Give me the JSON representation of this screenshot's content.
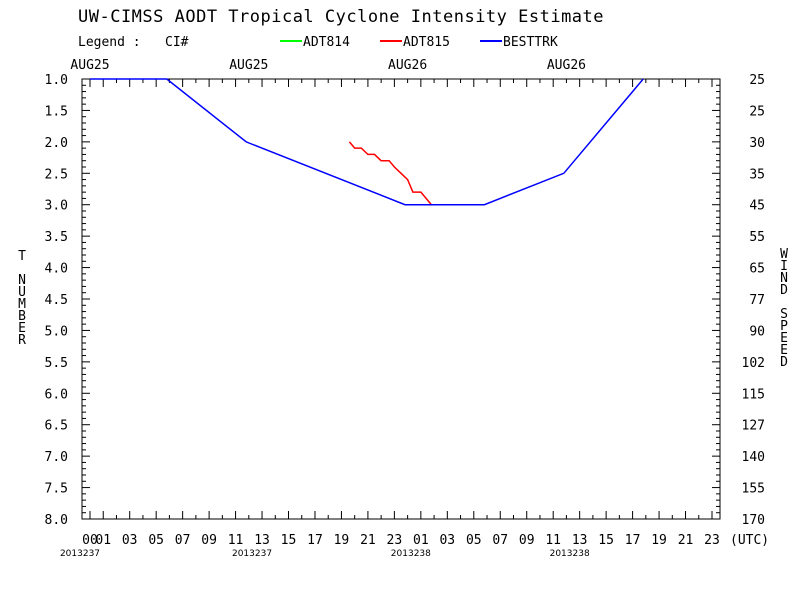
{
  "chart_data": {
    "type": "line",
    "title": "UW-CIMSS AODT Tropical Cyclone Intensity Estimate",
    "legend": {
      "label": "Legend :",
      "value_label": "CI#",
      "entries": [
        {
          "name": "ADT814",
          "color": "#00ff00"
        },
        {
          "name": "ADT815",
          "color": "#ff0000"
        },
        {
          "name": "BESTTRK",
          "color": "#0000ff"
        }
      ]
    },
    "date_labels": [
      {
        "text": "AUG25",
        "hour": 0
      },
      {
        "text": "AUG25",
        "hour": 12
      },
      {
        "text": "AUG26",
        "hour": 24
      },
      {
        "text": "AUG26",
        "hour": 36
      }
    ],
    "x": {
      "min_hour": 0,
      "max_hour": 47,
      "tick_labels": [
        "00",
        "01",
        "03",
        "05",
        "07",
        "09",
        "11",
        "13",
        "15",
        "17",
        "19",
        "21",
        "23",
        "01",
        "03",
        "05",
        "07",
        "09",
        "11",
        "13",
        "15",
        "17",
        "19",
        "21",
        "23"
      ],
      "tick_hours": [
        0,
        1,
        3,
        5,
        7,
        9,
        11,
        13,
        15,
        17,
        19,
        21,
        23,
        25,
        27,
        29,
        31,
        33,
        35,
        37,
        39,
        41,
        43,
        45,
        47
      ],
      "unit_label": "(UTC)",
      "julian_labels": [
        {
          "text": "2013237",
          "hour": 0
        },
        {
          "text": "2013237",
          "hour": 13
        },
        {
          "text": "2013238",
          "hour": 25
        },
        {
          "text": "2013238",
          "hour": 37
        }
      ]
    },
    "y_left": {
      "label": "T NUMBER",
      "ylim": [
        1.0,
        8.0
      ],
      "ticks": [
        "1.0",
        "1.5",
        "2.0",
        "2.5",
        "3.0",
        "3.5",
        "4.0",
        "4.5",
        "5.0",
        "5.5",
        "6.0",
        "6.5",
        "7.0",
        "7.5",
        "8.0"
      ]
    },
    "y_right": {
      "label": "WIND SPEED",
      "ticks": [
        "25",
        "25",
        "30",
        "35",
        "45",
        "55",
        "65",
        "77",
        "90",
        "102",
        "115",
        "127",
        "140",
        "155",
        "170"
      ]
    },
    "series": [
      {
        "name": "ADT815",
        "color": "#ff0000",
        "points": [
          [
            19.6,
            2.0
          ],
          [
            20.0,
            2.1
          ],
          [
            20.5,
            2.1
          ],
          [
            21.0,
            2.2
          ],
          [
            21.5,
            2.2
          ],
          [
            22.0,
            2.3
          ],
          [
            22.6,
            2.3
          ],
          [
            23.0,
            2.4
          ],
          [
            23.5,
            2.5
          ],
          [
            24.0,
            2.6
          ],
          [
            24.4,
            2.8
          ],
          [
            25.0,
            2.8
          ],
          [
            25.6,
            2.95
          ],
          [
            25.8,
            3.0
          ]
        ]
      },
      {
        "name": "BESTTRK",
        "color": "#0000ff",
        "points": [
          [
            0,
            1.0
          ],
          [
            5.8,
            1.0
          ],
          [
            11.8,
            2.0
          ],
          [
            23.8,
            3.0
          ],
          [
            29.8,
            3.0
          ],
          [
            35.8,
            2.5
          ],
          [
            41.8,
            1.0
          ]
        ]
      }
    ]
  }
}
